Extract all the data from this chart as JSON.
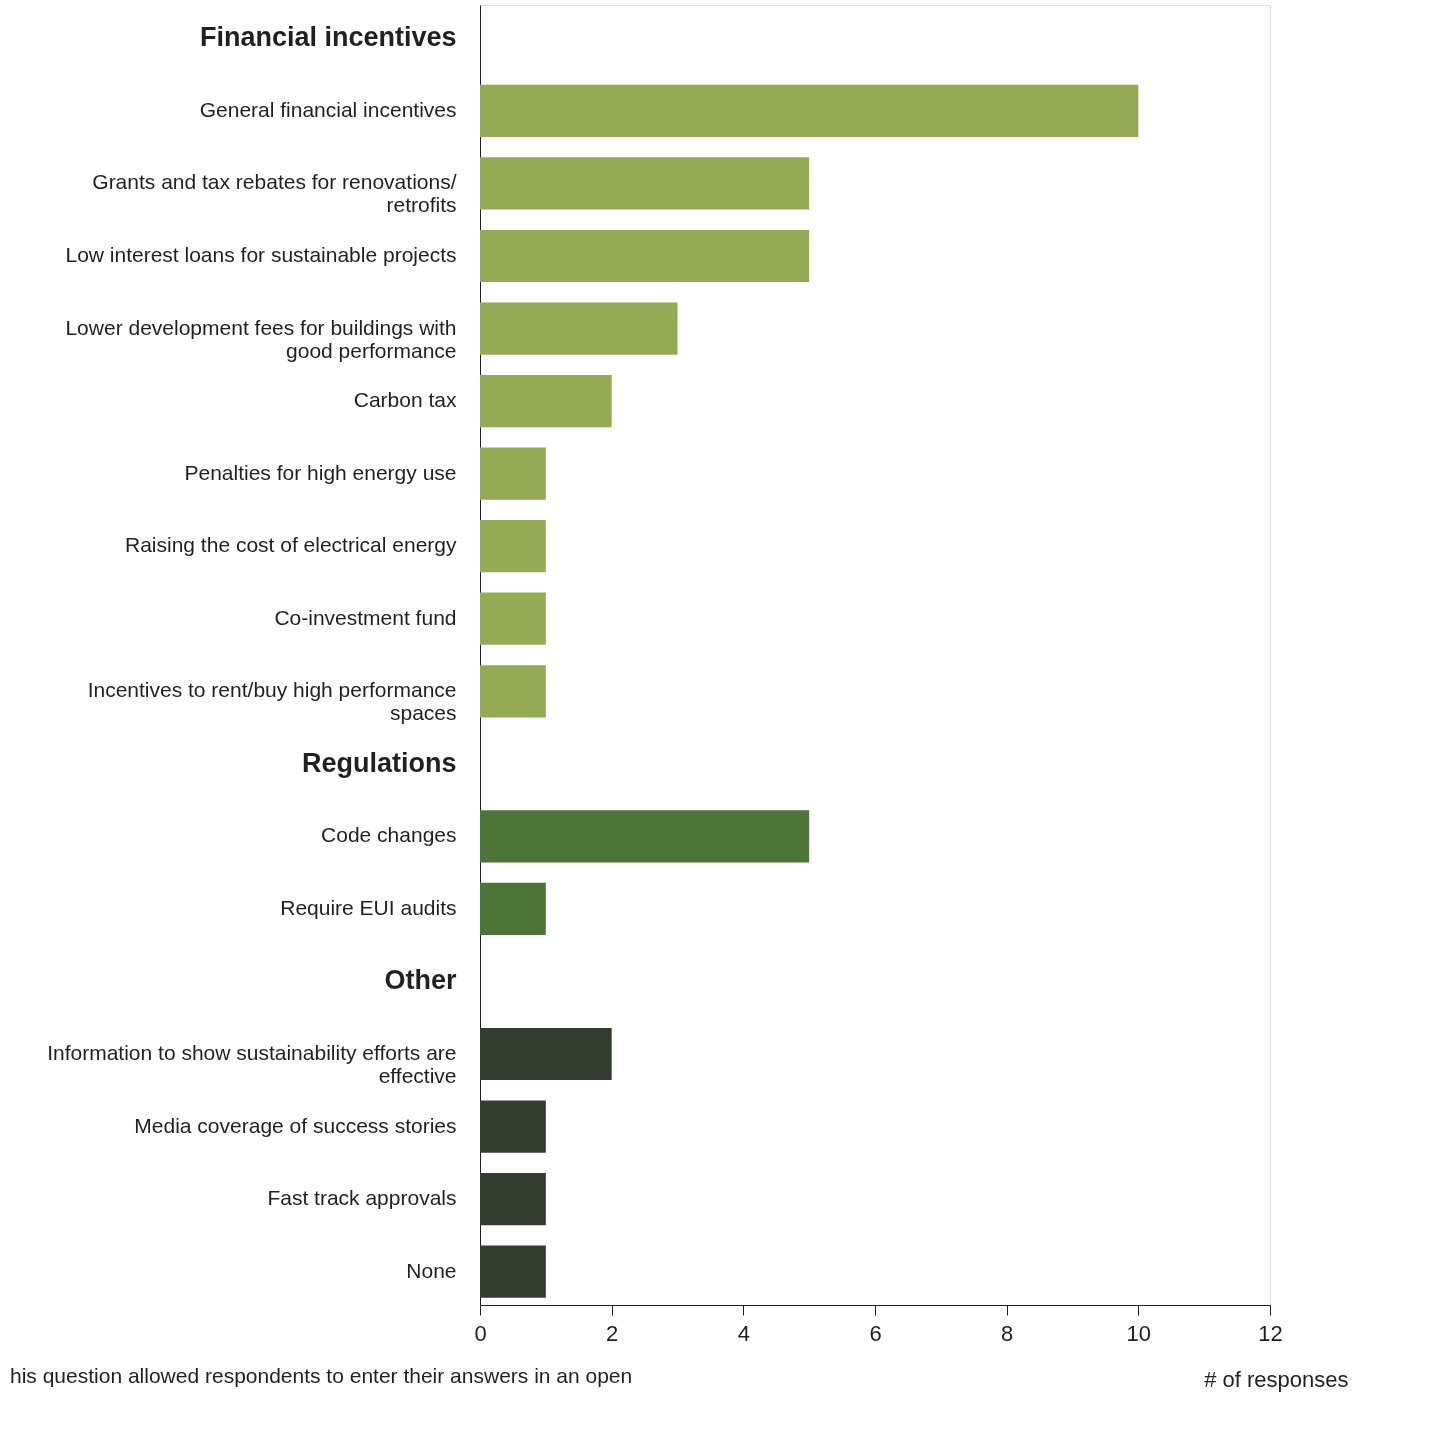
{
  "chart_data": {
    "type": "bar",
    "orientation": "horizontal",
    "categories": [
      "Financial incentives",
      "General financial incentives",
      "Grants and tax rebates for renovations/\nretrofits",
      "Low interest loans for sustainable projects",
      "Lower development fees for buildings with\ngood performance",
      "Carbon tax",
      "Penalties for high energy use",
      "Raising the cost of electrical energy",
      "Co-investment fund",
      "Incentives to rent/buy high performance\nspaces",
      "Regulations",
      "Code changes",
      "Require EUI audits",
      "Other",
      "Information to show sustainability efforts are\neffective",
      "Media coverage of success stories",
      "Fast track approvals",
      "None"
    ],
    "values": [
      null,
      10,
      5,
      5,
      3,
      2,
      1,
      1,
      1,
      1,
      null,
      5,
      1,
      null,
      2,
      1,
      1,
      1
    ],
    "colors": [
      null,
      "#95aa55",
      "#95aa55",
      "#95aa55",
      "#95aa55",
      "#95aa55",
      "#95aa55",
      "#95aa55",
      "#95aa55",
      "#95aa55",
      null,
      "#4e7538",
      "#4e7538",
      null,
      "#323d30",
      "#323d30",
      "#323d30",
      "#323d30"
    ],
    "xlim": [
      0,
      12
    ],
    "xticks": [
      0,
      2,
      4,
      6,
      8,
      10,
      12
    ],
    "xlabel": "# of responses",
    "grid": false,
    "annotations": [
      "his question allowed respondents to enter their answers in an open"
    ]
  }
}
